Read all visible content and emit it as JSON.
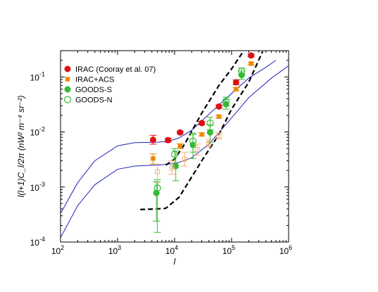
{
  "chart_data": {
    "type": "scatter",
    "xscale": "log",
    "yscale": "log",
    "xlim": [
      100,
      1000000
    ],
    "ylim": [
      0.0001,
      0.3
    ],
    "xlabel": "l",
    "ylabel": "l(l+1)C_l/2π (nW² m⁻⁴ sr⁻²)",
    "xticks": [
      {
        "value": 100,
        "base": "10",
        "exp": "2"
      },
      {
        "value": 1000,
        "base": "10",
        "exp": "3"
      },
      {
        "value": 10000,
        "base": "10",
        "exp": "4"
      },
      {
        "value": 100000,
        "base": "10",
        "exp": "5"
      },
      {
        "value": 1000000,
        "base": "10",
        "exp": "6"
      }
    ],
    "yticks": [
      {
        "value": 0.0001,
        "base": "10",
        "exp": "-4"
      },
      {
        "value": 0.001,
        "base": "10",
        "exp": "-3"
      },
      {
        "value": 0.01,
        "base": "10",
        "exp": "-2"
      },
      {
        "value": 0.1,
        "base": "10",
        "exp": "-1"
      }
    ],
    "legend_position": "top-left",
    "series": [
      {
        "name": "IRAC (Cooray et al. 07)",
        "marker": "circle",
        "color": "#dd1111",
        "points": [
          {
            "x": 4200,
            "y": 0.0072,
            "lo": 0.006,
            "hi": 0.0087
          },
          {
            "x": 7700,
            "y": 0.0071,
            "lo": 0.0065,
            "hi": 0.0077
          },
          {
            "x": 12500,
            "y": 0.0098,
            "lo": 0.0093,
            "hi": 0.0104
          },
          {
            "x": 30000,
            "y": 0.0145,
            "lo": 0.0135,
            "hi": 0.0155
          },
          {
            "x": 60000,
            "y": 0.029,
            "lo": 0.027,
            "hi": 0.031
          },
          {
            "x": 120000,
            "y": 0.08,
            "lo": 0.072,
            "hi": 0.088
          },
          {
            "x": 220000,
            "y": 0.245,
            "lo": 0.23,
            "hi": 0.26
          }
        ]
      },
      {
        "name": "IRAC+ACS",
        "marker": "square",
        "color": "#ee8800",
        "points": [
          {
            "x": 4200,
            "y": 0.0033,
            "lo": 0.0026,
            "hi": 0.004
          },
          {
            "x": 12500,
            "y": 0.0055,
            "lo": 0.005,
            "hi": 0.0061
          },
          {
            "x": 30000,
            "y": 0.009,
            "lo": 0.0085,
            "hi": 0.0096
          },
          {
            "x": 60000,
            "y": 0.019,
            "lo": 0.018,
            "hi": 0.02
          },
          {
            "x": 120000,
            "y": 0.06,
            "lo": 0.056,
            "hi": 0.064
          },
          {
            "x": 220000,
            "y": 0.175,
            "lo": 0.165,
            "hi": 0.185
          }
        ]
      },
      {
        "name": "GOODS-S",
        "marker": "circle",
        "color": "#33bb33",
        "points": [
          {
            "x": 4800,
            "y": 0.00078,
            "lo": 0.00024,
            "hi": 0.00125
          },
          {
            "x": 10500,
            "y": 0.0024,
            "lo": 0.0013,
            "hi": 0.0045
          },
          {
            "x": 21000,
            "y": 0.0058,
            "lo": 0.0033,
            "hi": 0.009
          },
          {
            "x": 42000,
            "y": 0.0098,
            "lo": 0.0065,
            "hi": 0.0135
          },
          {
            "x": 80000,
            "y": 0.032,
            "lo": 0.026,
            "hi": 0.039
          },
          {
            "x": 150000,
            "y": 0.108,
            "lo": 0.09,
            "hi": 0.128
          }
        ]
      },
      {
        "name": "GOODS-N",
        "marker": "open-circle",
        "color": "#33bb33",
        "points": [
          {
            "x": 5000,
            "y": 0.00095,
            "lo": 0.00015,
            "hi": 0.00135
          },
          {
            "x": 10000,
            "y": 0.0039,
            "lo": 0.0022,
            "hi": 0.005
          },
          {
            "x": 21000,
            "y": 0.0068,
            "lo": 0.0043,
            "hi": 0.0095
          },
          {
            "x": 42000,
            "y": 0.0145,
            "lo": 0.011,
            "hi": 0.0185
          },
          {
            "x": 80000,
            "y": 0.036,
            "lo": 0.03,
            "hi": 0.043
          },
          {
            "x": 150000,
            "y": 0.127,
            "lo": 0.11,
            "hi": 0.145
          }
        ]
      },
      {
        "marker": "open-square",
        "color": "#f2b27a",
        "in_legend": false,
        "points": [
          {
            "x": 5000,
            "y": 0.0019,
            "lo": 0.0012,
            "hi": 0.0026
          },
          {
            "x": 9000,
            "y": 0.0022,
            "lo": 0.0017,
            "hi": 0.003
          },
          {
            "x": 15000,
            "y": 0.0032,
            "lo": 0.0024,
            "hi": 0.0043
          },
          {
            "x": 25000,
            "y": 0.0048,
            "lo": 0.0038,
            "hi": 0.006
          },
          {
            "x": 40000,
            "y": 0.0062,
            "lo": 0.0053,
            "hi": 0.0073
          },
          {
            "x": 60000,
            "y": 0.0085,
            "lo": 0.0075,
            "hi": 0.0097
          }
        ]
      }
    ],
    "lines": [
      {
        "style": "solid",
        "color": "#2222bb",
        "points": [
          [
            100,
            0.00033
          ],
          [
            200,
            0.0012
          ],
          [
            400,
            0.003
          ],
          [
            1000,
            0.0056
          ],
          [
            2000,
            0.0064
          ],
          [
            5000,
            0.0065
          ],
          [
            8000,
            0.0068
          ],
          [
            12000,
            0.0078
          ],
          [
            20000,
            0.0108
          ],
          [
            40000,
            0.021
          ],
          [
            100000,
            0.05
          ],
          [
            200000,
            0.095
          ],
          [
            400000,
            0.15
          ],
          [
            600000,
            0.2
          ]
        ]
      },
      {
        "style": "solid",
        "color": "#2222bb",
        "points": [
          [
            100,
            0.00012
          ],
          [
            200,
            0.00046
          ],
          [
            400,
            0.0011
          ],
          [
            1000,
            0.0021
          ],
          [
            2000,
            0.0024
          ],
          [
            5000,
            0.0025
          ],
          [
            8000,
            0.0026
          ],
          [
            12000,
            0.0028
          ],
          [
            20000,
            0.0034
          ],
          [
            40000,
            0.006
          ],
          [
            100000,
            0.018
          ],
          [
            200000,
            0.042
          ],
          [
            500000,
            0.095
          ],
          [
            1000000,
            0.16
          ]
        ]
      },
      {
        "style": "dashed",
        "color": "#000000",
        "points": [
          [
            7000,
            0.0025
          ],
          [
            10000,
            0.0032
          ],
          [
            15000,
            0.006
          ],
          [
            30000,
            0.022
          ],
          [
            60000,
            0.07
          ],
          [
            100000,
            0.14
          ],
          [
            160000,
            0.29
          ]
        ]
      },
      {
        "style": "dashed",
        "color": "#000000",
        "points": [
          [
            2500,
            0.00039
          ],
          [
            5000,
            0.0004
          ],
          [
            7000,
            0.00041
          ],
          [
            12000,
            0.00065
          ],
          [
            30000,
            0.003
          ],
          [
            60000,
            0.009
          ],
          [
            100000,
            0.026
          ],
          [
            200000,
            0.08
          ],
          [
            350000,
            0.29
          ]
        ]
      }
    ]
  }
}
